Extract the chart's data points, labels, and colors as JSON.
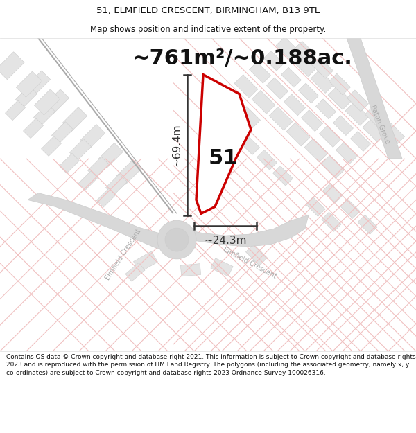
{
  "title_line1": "51, ELMFIELD CRESCENT, BIRMINGHAM, B13 9TL",
  "title_line2": "Map shows position and indicative extent of the property.",
  "area_text": "~761m²/~0.188ac.",
  "property_number": "51",
  "dim_height": "~69.4m",
  "dim_width": "~24.3m",
  "footer_text": "Contains OS data © Crown copyright and database right 2021. This information is subject to Crown copyright and database rights 2023 and is reproduced with the permission of HM Land Registry. The polygons (including the associated geometry, namely x, y co-ordinates) are subject to Crown copyright and database rights 2023 Ordnance Survey 100026316.",
  "map_bg": "#ffffff",
  "road_color": "#f0c0c0",
  "road_fill": "#e8e8e8",
  "property_outline_color": "#cc0000",
  "dim_line_color": "#333333",
  "title_color": "#111111",
  "footer_color": "#111111",
  "header_bg": "#ffffff",
  "footer_bg": "#ffffff",
  "title_fontsize": 9.5,
  "subtitle_fontsize": 8.5,
  "area_fontsize": 22,
  "dim_fontsize": 11,
  "prop_num_fontsize": 22,
  "footer_fontsize": 6.5,
  "street_label_color": "#aaaaaa",
  "road_gray": "#d8d8d8",
  "road_edge": "#cccccc"
}
